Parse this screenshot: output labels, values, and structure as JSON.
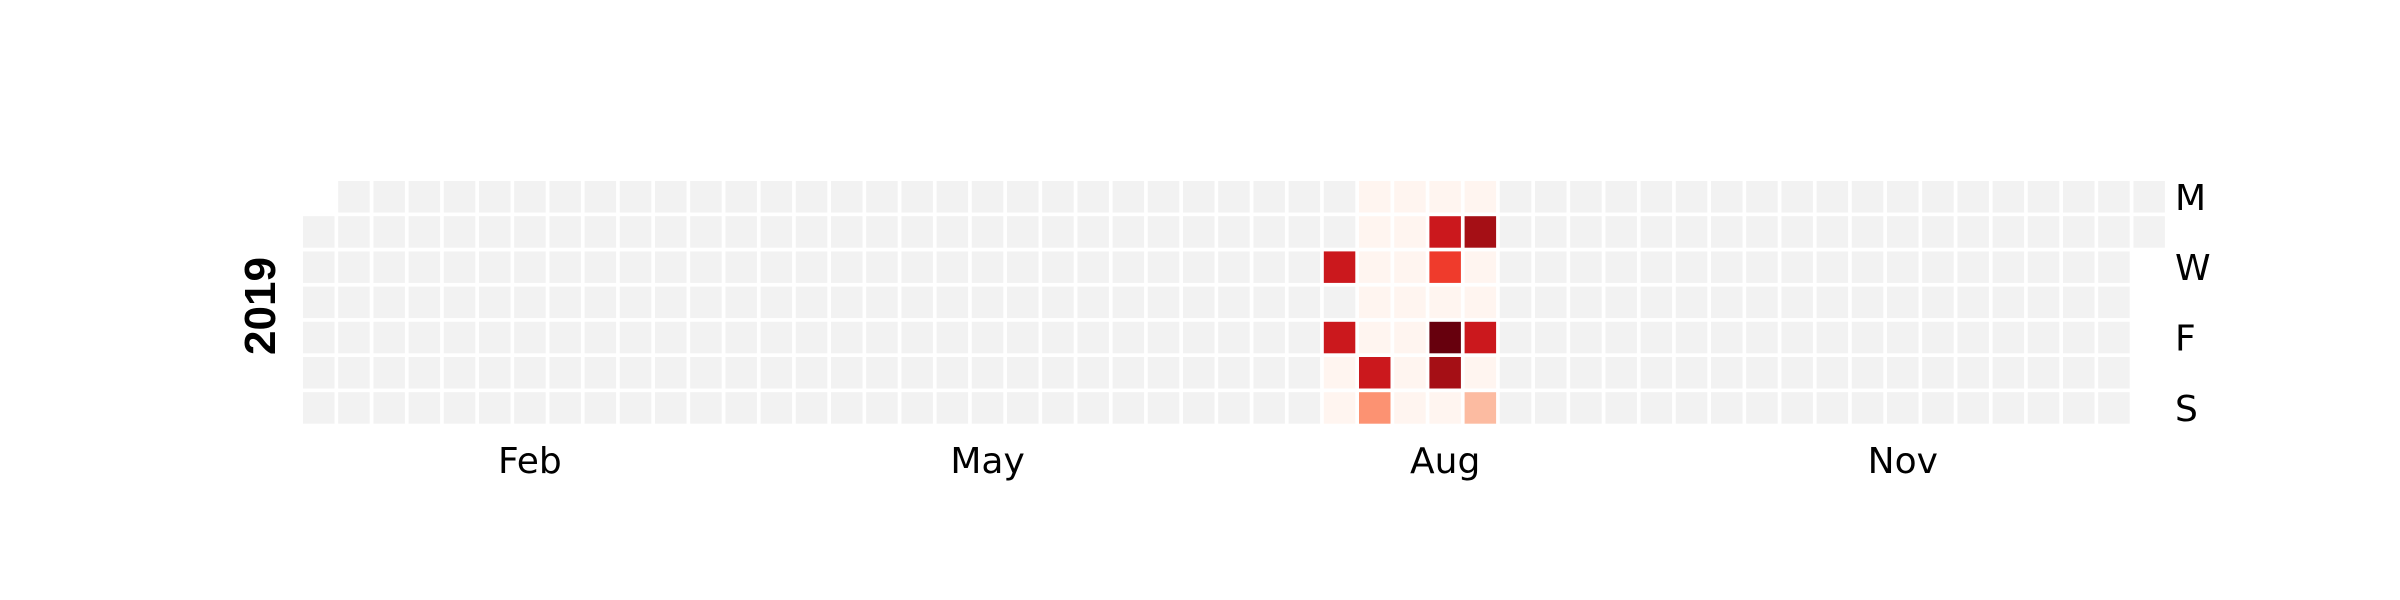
{
  "chart_data": {
    "type": "heatmap",
    "title": "",
    "year_label": "2019",
    "start_date": "2019-01-01",
    "end_date": "2019-12-31",
    "month_labels": [
      {
        "label": "Feb",
        "month": 2
      },
      {
        "label": "May",
        "month": 5
      },
      {
        "label": "Aug",
        "month": 8
      },
      {
        "label": "Nov",
        "month": 11
      }
    ],
    "weekday_labels": [
      {
        "label": "M",
        "row": 0
      },
      {
        "label": "W",
        "row": 2
      },
      {
        "label": "F",
        "row": 4
      },
      {
        "label": "S",
        "row": 6
      }
    ],
    "values": [
      {
        "date": "2019-07-24",
        "value": 8
      },
      {
        "date": "2019-07-26",
        "value": 7
      },
      {
        "date": "2019-07-27",
        "value": 0
      },
      {
        "date": "2019-07-28",
        "value": 0
      },
      {
        "date": "2019-07-29",
        "value": 0
      },
      {
        "date": "2019-07-30",
        "value": 0
      },
      {
        "date": "2019-07-31",
        "value": 0
      },
      {
        "date": "2019-08-01",
        "value": 0
      },
      {
        "date": "2019-08-02",
        "value": 0
      },
      {
        "date": "2019-08-03",
        "value": 8
      },
      {
        "date": "2019-08-04",
        "value": 4
      },
      {
        "date": "2019-08-05",
        "value": 0
      },
      {
        "date": "2019-08-06",
        "value": 0
      },
      {
        "date": "2019-08-07",
        "value": 0
      },
      {
        "date": "2019-08-08",
        "value": 0
      },
      {
        "date": "2019-08-09",
        "value": 0
      },
      {
        "date": "2019-08-10",
        "value": 0
      },
      {
        "date": "2019-08-11",
        "value": 0
      },
      {
        "date": "2019-08-12",
        "value": 0
      },
      {
        "date": "2019-08-13",
        "value": 8
      },
      {
        "date": "2019-08-14",
        "value": 6
      },
      {
        "date": "2019-08-15",
        "value": 0
      },
      {
        "date": "2019-08-16",
        "value": 10
      },
      {
        "date": "2019-08-17",
        "value": 9
      },
      {
        "date": "2019-08-18",
        "value": 0
      },
      {
        "date": "2019-08-19",
        "value": 0
      },
      {
        "date": "2019-08-20",
        "value": 9
      },
      {
        "date": "2019-08-21",
        "value": 0
      },
      {
        "date": "2019-08-22",
        "value": 0
      },
      {
        "date": "2019-08-23",
        "value": 8
      },
      {
        "date": "2019-08-24",
        "value": 0
      },
      {
        "date": "2019-08-25",
        "value": 2
      }
    ],
    "vmin": 0,
    "vmax": 10,
    "colormap": "Reds",
    "empty_color": "#f2f2f2",
    "colors": [
      "#fff5f0",
      "#fee0d2",
      "#fcbba1",
      "#fc9272",
      "#fb6a4a",
      "#ef3b2c",
      "#cb181d",
      "#a50f15",
      "#67000d"
    ]
  }
}
